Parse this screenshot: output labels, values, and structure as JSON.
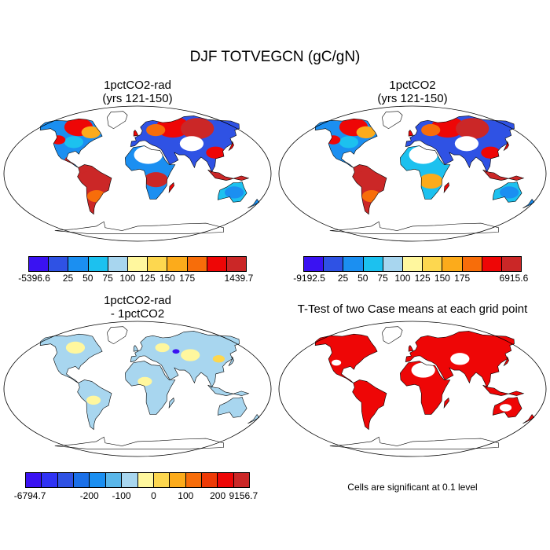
{
  "title": "DJF TOTVEGCN (gC/gN)",
  "panels": [
    {
      "title_lines": [
        "1pctCO2-rad",
        "(yrs 121-150)"
      ],
      "colorbar": {
        "colors": [
          "#3a12f2",
          "#2f52e4",
          "#1b8ff1",
          "#1cc1ef",
          "#a8d6ef",
          "#fff79e",
          "#fdd74f",
          "#fcab1b",
          "#f76d0a",
          "#ee0606",
          "#cb2727"
        ],
        "labels": [
          "-5396.6",
          "25",
          "50",
          "75",
          "100",
          "125",
          "150",
          "175",
          "1439.7"
        ]
      },
      "palette": {
        "land": [
          "#2f52e4",
          "#1b8ff1",
          "#1cc1ef",
          "#a8d6ef"
        ],
        "hot": [
          "#ee0606",
          "#cb2727",
          "#f76d0a",
          "#fcab1b"
        ]
      }
    },
    {
      "title_lines": [
        "1pctCO2",
        "(yrs 121-150)"
      ],
      "colorbar": {
        "colors": [
          "#3a12f2",
          "#2f52e4",
          "#1b8ff1",
          "#1cc1ef",
          "#a8d6ef",
          "#fff79e",
          "#fdd74f",
          "#fcab1b",
          "#f76d0a",
          "#ee0606",
          "#cb2727"
        ],
        "labels": [
          "-9192.5",
          "25",
          "50",
          "75",
          "100",
          "125",
          "150",
          "175",
          "6915.6"
        ]
      }
    },
    {
      "title_lines": [
        "1pctCO2-rad",
        "- 1pctCO2"
      ],
      "colorbar": {
        "colors": [
          "#3a12f2",
          "#2f32f4",
          "#2f52e4",
          "#1b70e8",
          "#1b8ff1",
          "#5ab7ea",
          "#a8d6ef",
          "#fff79e",
          "#fdd74f",
          "#fcab1b",
          "#f76d0a",
          "#ee3a06",
          "#ee0606",
          "#cb2727"
        ],
        "labels": [
          "-6794.7",
          "-200",
          "-100",
          "0",
          "100",
          "200",
          "9156.7"
        ]
      }
    },
    {
      "title_lines": [
        "T-Test of two Case means at each grid point"
      ],
      "footnote": "Cells are significant at 0.1 level",
      "significant_color": "#ee0606"
    }
  ]
}
